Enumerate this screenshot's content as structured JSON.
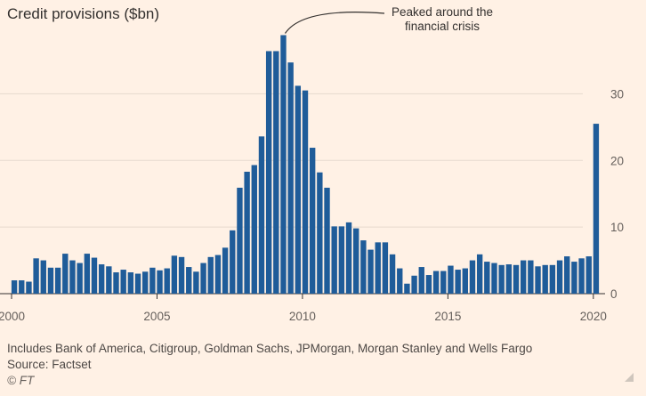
{
  "title": "Credit provisions ($bn)",
  "note": "Includes Bank of America, Citigroup, Goldman Sachs, JPMorgan, Morgan Stanley and Wells Fargo",
  "source": "Source: Factset",
  "copyright": "© FT",
  "colors": {
    "bar": "#1f5c99",
    "background": "#fff1e5",
    "grid": "#e6d9ce",
    "text": "#66605c"
  },
  "icons": {
    "corner": "resize-corner-icon"
  },
  "chart_data": {
    "type": "bar",
    "title": "Credit provisions ($bn)",
    "xlabel": "",
    "ylabel": "",
    "ylim": [
      0,
      39
    ],
    "y_ticks": [
      0,
      10,
      20,
      30
    ],
    "x_tick_labels": [
      "2000",
      "2005",
      "2010",
      "2015",
      "2020"
    ],
    "grid": true,
    "annotation": {
      "text": [
        "Peaked around the",
        "financial crisis"
      ]
    },
    "series": [
      {
        "values": [
          2.0,
          2.0,
          1.8,
          5.3,
          5.0,
          3.9,
          3.9,
          6.0,
          5.0,
          4.6,
          6.0,
          5.4,
          4.4,
          4.1,
          3.2,
          3.6,
          3.2,
          3.0,
          3.3,
          3.9,
          3.5,
          3.8,
          5.7,
          5.5,
          4.0,
          3.3,
          4.6,
          5.5,
          5.8,
          6.9,
          9.5,
          15.9,
          18.3,
          19.3,
          23.6,
          36.4,
          36.4,
          38.8,
          34.7,
          31.2,
          30.5,
          21.9,
          18.2,
          15.9,
          10.1,
          10.1,
          10.7,
          9.8,
          8.0,
          6.6,
          7.7,
          7.7,
          5.9,
          3.8,
          1.5,
          2.7,
          4.0,
          2.8,
          3.4,
          3.4,
          4.2,
          3.6,
          3.8,
          5.0,
          5.9,
          4.8,
          4.6,
          4.3,
          4.4,
          4.3,
          5.0,
          5.0,
          4.1,
          4.3,
          4.3,
          5.0,
          5.6,
          4.8,
          5.3,
          5.6,
          25.5
        ]
      }
    ]
  }
}
